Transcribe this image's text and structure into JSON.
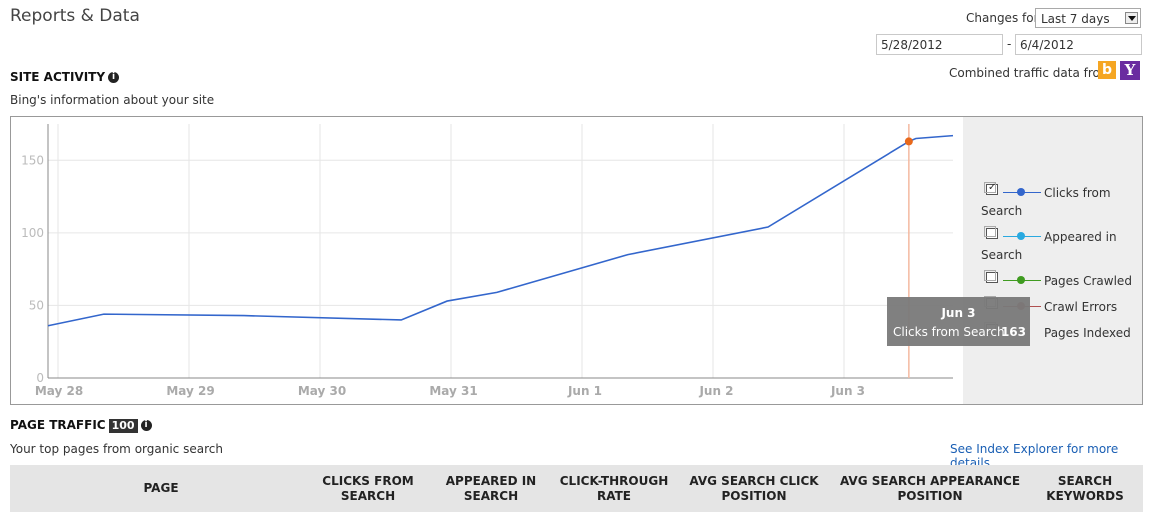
{
  "page_title": "Reports & Data",
  "changes": {
    "label": "Changes for",
    "selected": "Last 7 days",
    "start_date": "5/28/2012",
    "end_date": "6/4/2012",
    "separator": "-"
  },
  "combined": {
    "label": "Combined traffic data from",
    "bing": "b",
    "yahoo": "Y"
  },
  "site_activity": {
    "title": "SITE ACTIVITY",
    "info": "i",
    "subtitle": "Bing's information about your site"
  },
  "colors": {
    "clicks": "#3366cc",
    "appeared": "#29a9e0",
    "crawled": "#3f9b20",
    "errors": "#b05050",
    "marker": "#e8681b",
    "gridline": "#e6e6e6"
  },
  "chart_data": {
    "type": "line",
    "x_ticks": [
      "May 28",
      "May 29",
      "May 30",
      "May 31",
      "Jun 1",
      "Jun 2",
      "Jun 3"
    ],
    "y_ticks": [
      "0",
      "50",
      "100",
      "150"
    ],
    "ylim": [
      0,
      175
    ],
    "series": [
      {
        "name": "Clicks from Search",
        "x": [
          "May 28",
          "May 28",
          "May 29",
          "May 30",
          "May 31",
          "May 31",
          "Jun 1",
          "Jun 2",
          "Jun 3",
          "Jun 3",
          "Jun 4"
        ],
        "values": [
          36,
          44,
          43,
          40,
          53,
          59,
          85,
          104,
          163,
          165,
          167
        ]
      }
    ],
    "highlight": {
      "date": "Jun 3",
      "series": "Clicks from Search",
      "value": 163
    }
  },
  "legend": [
    {
      "label_line1": "Clicks from",
      "label_line2": "Search",
      "checked": true,
      "icon": "checkbox-checked"
    },
    {
      "label_line1": "Appeared in",
      "label_line2": "Search",
      "checked": false,
      "icon": "checkbox"
    },
    {
      "label_line1": "Pages Crawled",
      "label_line2": "",
      "checked": false,
      "icon": "checkbox"
    },
    {
      "label_line1": "Crawl Errors",
      "label_line2": "",
      "checked": false,
      "icon": "checkbox"
    },
    {
      "label_line1": "Pages Indexed",
      "label_line2": "",
      "checked": false,
      "icon": "checkbox"
    }
  ],
  "tooltip": {
    "date": "Jun 3",
    "label": "Clicks from Search",
    "value": "163"
  },
  "page_traffic": {
    "title": "PAGE TRAFFIC",
    "badge": "100",
    "info": "i",
    "subtitle": "Your top pages from organic search",
    "link": "See Index Explorer for more details",
    "columns": [
      {
        "line1": "PAGE",
        "line2": ""
      },
      {
        "line1": "CLICKS FROM",
        "line2": "SEARCH"
      },
      {
        "line1": "APPEARED IN",
        "line2": "SEARCH"
      },
      {
        "line1": "CLICK-THROUGH",
        "line2": "RATE"
      },
      {
        "line1": "AVG SEARCH CLICK",
        "line2": "POSITION"
      },
      {
        "line1": "AVG SEARCH APPEARANCE",
        "line2": "POSITION"
      },
      {
        "line1": "SEARCH",
        "line2": "KEYWORDS"
      }
    ]
  }
}
